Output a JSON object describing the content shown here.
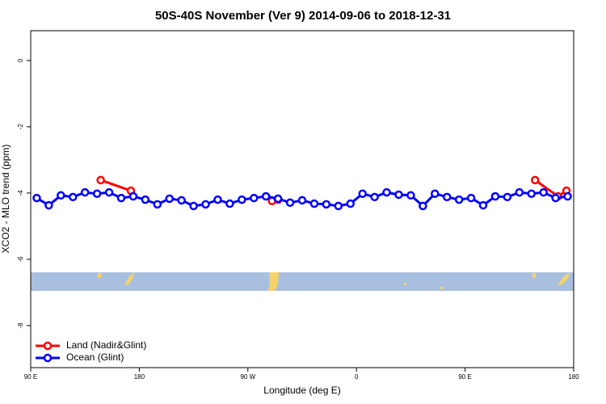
{
  "chart_data": {
    "type": "line",
    "title": "50S-40S November (Ver 9)   2014-09-06 to 2018-12-31",
    "xlabel": "Longitude (deg E)",
    "ylabel": "XCO2 - MLO trend (ppm)",
    "xlim": [
      90,
      540
    ],
    "ylim": [
      -9.27,
      0.9
    ],
    "xticks": [
      {
        "value": 90,
        "label": "90 E"
      },
      {
        "value": 180,
        "label": "180"
      },
      {
        "value": 270,
        "label": "90 W"
      },
      {
        "value": 360,
        "label": "0"
      },
      {
        "value": 450,
        "label": "90 E"
      },
      {
        "value": 540,
        "label": "180"
      }
    ],
    "yticks": [
      0,
      -2,
      -4,
      -6,
      -8
    ],
    "legend": "bottom-left",
    "series": [
      {
        "name": "Land (Nadir&Glint)",
        "color": "#ff0000",
        "x": [
          148,
          173,
          290,
          295,
          508,
          527,
          534
        ],
        "values": [
          -3.61,
          -3.93,
          -4.24,
          -4.2,
          -3.61,
          -4.1,
          -3.93
        ]
      },
      {
        "name": "Ocean (Glint)",
        "color": "#0000ff",
        "x": [
          95,
          105,
          115,
          125,
          135,
          145,
          155,
          165,
          175,
          185,
          195,
          205,
          215,
          225,
          235,
          245,
          255,
          265,
          275,
          285,
          295,
          305,
          315,
          325,
          335,
          345,
          355,
          365,
          375,
          385,
          395,
          405,
          415,
          425,
          435,
          445,
          455,
          465,
          475,
          485,
          495,
          505,
          515,
          525,
          535
        ],
        "values": [
          -4.15,
          -4.37,
          -4.07,
          -4.12,
          -3.98,
          -4.02,
          -3.98,
          -4.15,
          -4.1,
          -4.2,
          -4.34,
          -4.17,
          -4.22,
          -4.39,
          -4.34,
          -4.2,
          -4.32,
          -4.2,
          -4.15,
          -4.1,
          -4.17,
          -4.29,
          -4.22,
          -4.32,
          -4.34,
          -4.39,
          -4.32,
          -4.02,
          -4.12,
          -3.98,
          -4.05,
          -4.07,
          -4.39,
          -4.02,
          -4.12,
          -4.2,
          -4.15,
          -4.37,
          -4.1,
          -4.12,
          -3.98,
          -4.02,
          -3.98,
          -4.15,
          -4.1
        ]
      }
    ]
  }
}
